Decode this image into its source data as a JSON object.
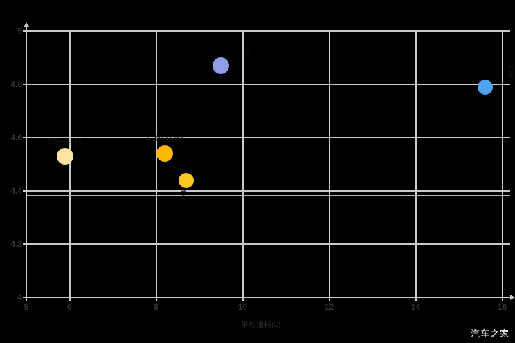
{
  "watermark": "汽车之家",
  "axis": {
    "x_title": "平均油耗(L)"
  },
  "colors": {
    "background": "#000000",
    "grid": "#c9c9c9",
    "axis_text": "#333333",
    "point_label_text": "#141414",
    "watermark_text": "#fafafa"
  },
  "chart_data": {
    "type": "scatter",
    "title": "",
    "xlabel": "平均油耗(L)",
    "ylabel": "",
    "xlim": [
      5,
      16.2
    ],
    "ylim": [
      4,
      5
    ],
    "x_ticks": [
      5,
      6,
      8,
      10,
      12,
      14,
      16
    ],
    "y_ticks": [
      5,
      4.8,
      4.6,
      4.4,
      4.2,
      4
    ],
    "grid": true,
    "reference_lines_y": [
      4.585,
      4.385
    ],
    "points": [
      {
        "label": "车型A 4.53分",
        "x": 5.9,
        "y": 4.53,
        "r": 12,
        "color": "#fce3a0",
        "label_side": "above"
      },
      {
        "label": "车型B 4.54分",
        "x": 8.2,
        "y": 4.54,
        "r": 12,
        "color": "#fcb900",
        "label_side": "above"
      },
      {
        "label": "4.44",
        "x": 8.7,
        "y": 4.44,
        "r": 11,
        "color": "#f9c71d",
        "label_side": "below-vertical"
      },
      {
        "label": "4.87",
        "x": 9.5,
        "y": 4.87,
        "r": 12,
        "color": "#8f9ce9",
        "label_side": "right-vertical"
      },
      {
        "label": "4.79",
        "x": 15.6,
        "y": 4.79,
        "r": 11,
        "color": "#4da3ed",
        "label_side": "right-vertical"
      }
    ]
  }
}
